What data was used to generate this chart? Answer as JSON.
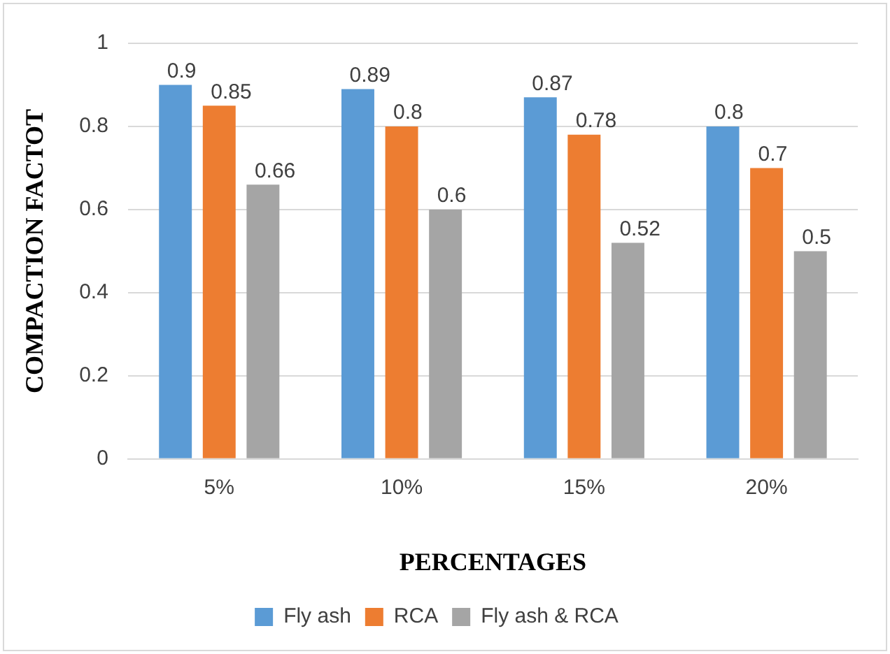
{
  "chart_data": {
    "type": "bar",
    "xlabel": "PERCENTAGES",
    "ylabel": "COMPACTION FACTOT",
    "categories": [
      "5%",
      "10%",
      "15%",
      "20%"
    ],
    "series": [
      {
        "name": "Fly ash",
        "color": "#5b9bd5",
        "values": [
          0.9,
          0.89,
          0.87,
          0.8
        ]
      },
      {
        "name": "RCA",
        "color": "#ed7d31",
        "values": [
          0.85,
          0.8,
          0.78,
          0.7
        ]
      },
      {
        "name": "Fly ash & RCA",
        "color": "#a5a5a5",
        "values": [
          0.66,
          0.6,
          0.52,
          0.5
        ]
      }
    ],
    "ylim": [
      0,
      1
    ],
    "yticks": [
      0,
      0.2,
      0.4,
      0.6,
      0.8,
      1
    ],
    "grid": "y",
    "legend": "bottom",
    "data_labels": true
  }
}
